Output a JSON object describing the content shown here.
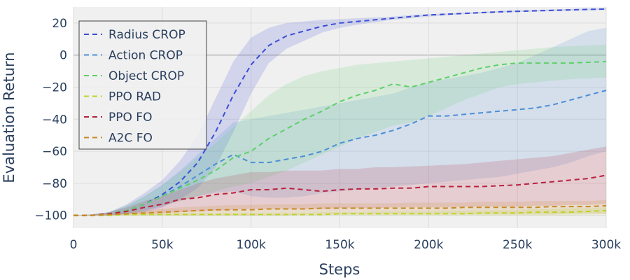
{
  "chart_data": {
    "type": "line",
    "xlabel": "Steps",
    "ylabel": "Evaluation Return",
    "xlim": [
      0,
      300000
    ],
    "ylim": [
      -108,
      30
    ],
    "x_ticks": [
      0,
      50000,
      100000,
      150000,
      200000,
      250000,
      300000
    ],
    "x_tick_labels": [
      "0",
      "50k",
      "100k",
      "150k",
      "200k",
      "250k",
      "300k"
    ],
    "y_ticks": [
      -100,
      -80,
      -60,
      -40,
      -20,
      0,
      20
    ],
    "y_tick_labels": [
      "−100",
      "−80",
      "−60",
      "−40",
      "−20",
      "0",
      "20"
    ],
    "grid": true,
    "legend_position": "top-left",
    "x": [
      0,
      10000,
      20000,
      30000,
      40000,
      50000,
      60000,
      70000,
      80000,
      90000,
      100000,
      110000,
      120000,
      130000,
      140000,
      150000,
      160000,
      170000,
      180000,
      190000,
      200000,
      210000,
      220000,
      230000,
      240000,
      250000,
      260000,
      270000,
      280000,
      290000,
      300000
    ],
    "series": [
      {
        "name": "Radius CROP",
        "color": "#3a4fd6",
        "style": "dashed",
        "values": [
          -100,
          -100,
          -99,
          -97,
          -93,
          -87,
          -79,
          -67,
          -48,
          -25,
          -6,
          6,
          12,
          15,
          18,
          20,
          21,
          22,
          23,
          24,
          25,
          25.5,
          26,
          26.5,
          27,
          27.3,
          27.6,
          27.9,
          28.2,
          28.5,
          28.7
        ],
        "upper": [
          -100,
          -99.5,
          -98,
          -93,
          -86,
          -78,
          -66,
          -50,
          -27,
          -4,
          11,
          17,
          20,
          21,
          22,
          22.5,
          23,
          23.5,
          24,
          25,
          25.5,
          26,
          26.5,
          27,
          27.5,
          28,
          28.2,
          28.5,
          28.8,
          29,
          29.2
        ],
        "lower": [
          -100,
          -100,
          -100,
          -99,
          -98,
          -95,
          -90,
          -83,
          -70,
          -48,
          -24,
          -5,
          4,
          9,
          14,
          17,
          19,
          20.5,
          22,
          23,
          24,
          24.8,
          25.5,
          26,
          26.5,
          26.8,
          27.1,
          27.4,
          27.6,
          28,
          28.2
        ]
      },
      {
        "name": "Action CROP",
        "color": "#4e8ed6",
        "style": "dashed",
        "values": [
          -100,
          -100,
          -99,
          -97,
          -93,
          -88,
          -82,
          -75,
          -68,
          -62,
          -67,
          -67,
          -65,
          -63,
          -60,
          -55,
          -52,
          -50,
          -47,
          -43,
          -38,
          -38,
          -37,
          -36,
          -35,
          -34,
          -33,
          -31,
          -28,
          -25,
          -22
        ],
        "upper": [
          -100,
          -99.5,
          -98,
          -94,
          -88,
          -81,
          -72,
          -62,
          -52,
          -42,
          -40,
          -38,
          -36,
          -34,
          -32,
          -30,
          -28,
          -26,
          -24,
          -20,
          -17,
          -15,
          -13,
          -11,
          -8,
          -5,
          0,
          5,
          10,
          15,
          17
        ],
        "lower": [
          -100,
          -100,
          -100,
          -99,
          -97,
          -94,
          -91,
          -88,
          -86,
          -85,
          -88,
          -89,
          -89,
          -88,
          -86,
          -85,
          -84,
          -83,
          -82,
          -81,
          -80,
          -79,
          -78,
          -77,
          -76,
          -74,
          -72,
          -70,
          -67,
          -63,
          -60
        ]
      },
      {
        "name": "Object CROP",
        "color": "#5fcf6a",
        "style": "dashed",
        "values": [
          -100,
          -100,
          -99,
          -97,
          -93,
          -88,
          -83,
          -78,
          -72,
          -64,
          -60,
          -52,
          -46,
          -40,
          -35,
          -29,
          -25,
          -22,
          -18,
          -20,
          -17,
          -14,
          -11,
          -8,
          -6,
          -5,
          -5,
          -5,
          -5,
          -4.5,
          -4
        ],
        "upper": [
          -100,
          -99.5,
          -98,
          -94,
          -88,
          -81,
          -73,
          -64,
          -55,
          -45,
          -35,
          -25,
          -18,
          -13,
          -10,
          -8,
          -6,
          -5,
          -4,
          -3,
          -2,
          -1,
          0,
          1,
          2,
          3,
          4,
          5,
          5.5,
          6,
          6.5
        ],
        "lower": [
          -100,
          -100,
          -100,
          -99,
          -97,
          -94,
          -91,
          -88,
          -85,
          -82,
          -80,
          -76,
          -72,
          -67,
          -62,
          -57,
          -52,
          -48,
          -44,
          -42,
          -38,
          -33,
          -28,
          -24,
          -20,
          -18,
          -17,
          -16,
          -15,
          -14.5,
          -14
        ]
      },
      {
        "name": "PPO RAD",
        "color": "#bcd42a",
        "style": "dashed",
        "values": [
          -100,
          -100,
          -100,
          -99.5,
          -99.5,
          -99.5,
          -99.5,
          -99.5,
          -99.5,
          -99.5,
          -99.5,
          -99.5,
          -99.5,
          -99.5,
          -99.5,
          -99,
          -99,
          -99,
          -99,
          -99,
          -99,
          -99,
          -99,
          -98.5,
          -98.5,
          -98.5,
          -98,
          -98,
          -98,
          -97.5,
          -97
        ],
        "upper": [
          -100,
          -99.5,
          -99.5,
          -99,
          -98.5,
          -98.5,
          -98.5,
          -98.5,
          -98.5,
          -98.5,
          -98.5,
          -98.5,
          -98.5,
          -98.5,
          -98,
          -98,
          -98,
          -97.5,
          -97.5,
          -97.5,
          -97.5,
          -97,
          -97,
          -97,
          -96.5,
          -96.5,
          -96,
          -96,
          -95.5,
          -95.5,
          -95
        ],
        "lower": [
          -100,
          -100,
          -100,
          -100,
          -100,
          -100,
          -100,
          -100,
          -100,
          -100,
          -100,
          -100,
          -100,
          -100,
          -100,
          -100,
          -100,
          -100,
          -100,
          -100,
          -100,
          -100,
          -100,
          -100,
          -100,
          -100,
          -100,
          -100,
          -100,
          -99.5,
          -99.5
        ]
      },
      {
        "name": "PPO FO",
        "color": "#b8213e",
        "style": "dashed",
        "values": [
          -100,
          -100,
          -99,
          -97.5,
          -95,
          -93,
          -90,
          -89,
          -87,
          -86,
          -84,
          -84,
          -83,
          -84,
          -85,
          -84,
          -83.5,
          -83.5,
          -83,
          -83,
          -82,
          -82,
          -82,
          -82,
          -81.5,
          -81,
          -80,
          -79,
          -78,
          -77,
          -75
        ],
        "upper": [
          -100,
          -99.5,
          -98,
          -95,
          -91,
          -88,
          -84,
          -80,
          -77,
          -75,
          -73,
          -73,
          -72,
          -72,
          -72,
          -71,
          -71,
          -70,
          -70,
          -69.5,
          -69,
          -68.5,
          -68,
          -67,
          -66,
          -65,
          -64,
          -63,
          -61,
          -59,
          -57
        ],
        "lower": [
          -100,
          -100,
          -100,
          -99.5,
          -99,
          -98.5,
          -98,
          -97.5,
          -97,
          -96.5,
          -96,
          -96,
          -96,
          -96,
          -96,
          -95.5,
          -95.5,
          -95.5,
          -95,
          -95,
          -95,
          -95,
          -94.5,
          -94.5,
          -94.5,
          -94.5,
          -94,
          -94,
          -93.5,
          -93.5,
          -93
        ]
      },
      {
        "name": "A2C FO",
        "color": "#c98a26",
        "style": "dashed",
        "values": [
          -100,
          -100,
          -99.5,
          -99,
          -98.5,
          -98,
          -97.5,
          -97,
          -96.5,
          -96.5,
          -96.5,
          -96,
          -96,
          -96,
          -95.5,
          -95.5,
          -95.5,
          -95.5,
          -95.5,
          -95.5,
          -95.5,
          -95.5,
          -95,
          -95,
          -95,
          -95,
          -95,
          -94.5,
          -94.5,
          -94.5,
          -94
        ],
        "upper": [
          -100,
          -99.5,
          -99,
          -98,
          -97,
          -96,
          -95,
          -94.5,
          -94,
          -93.5,
          -93.5,
          -93,
          -93,
          -93,
          -92.5,
          -92.5,
          -92.5,
          -92.5,
          -92.5,
          -92,
          -92,
          -92,
          -92,
          -91.5,
          -91.5,
          -91.5,
          -91,
          -91,
          -91,
          -91,
          -90.5
        ],
        "lower": [
          -100,
          -100,
          -100,
          -100,
          -100,
          -100,
          -100,
          -100,
          -100,
          -100,
          -100,
          -100,
          -100,
          -99.5,
          -99.5,
          -99.5,
          -99.5,
          -99.5,
          -99.5,
          -99.5,
          -99.5,
          -99.5,
          -99.5,
          -99.5,
          -99.5,
          -99.5,
          -99.5,
          -99.5,
          -99,
          -99,
          -99
        ]
      }
    ]
  }
}
